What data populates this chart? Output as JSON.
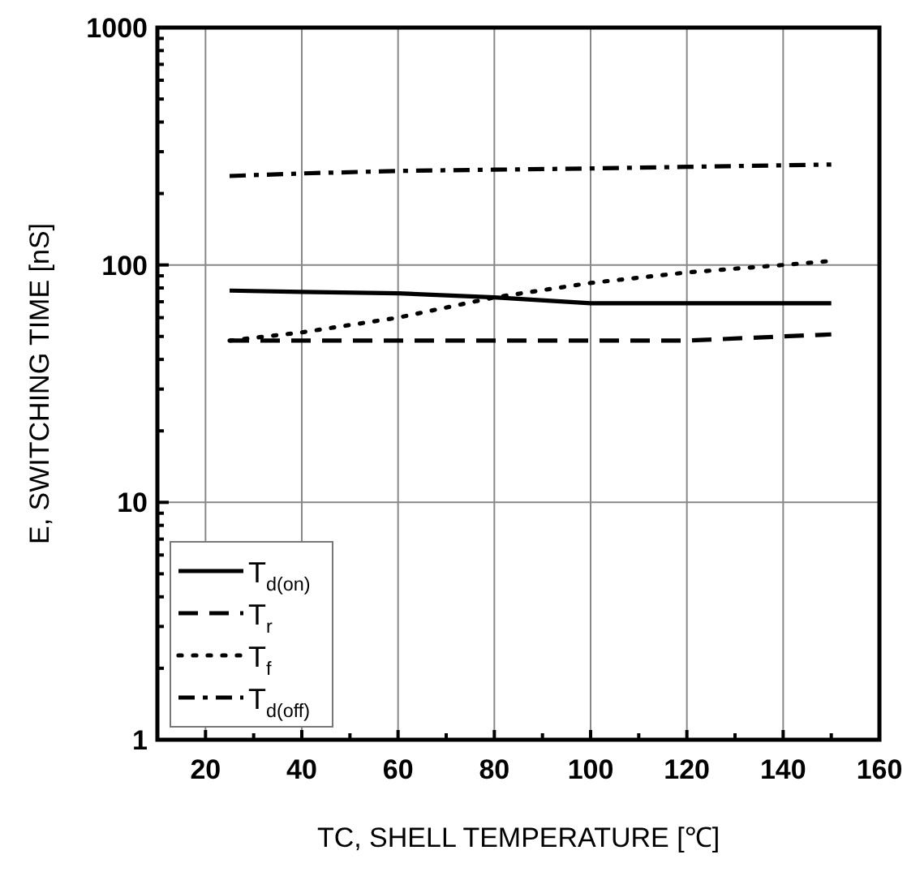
{
  "chart_data": {
    "type": "line",
    "xlabel": "TC, SHELL TEMPERATURE  [℃]",
    "ylabel": "E, SWITCHING TIME [nS]",
    "xlim": [
      10,
      160
    ],
    "xticks": [
      20,
      {
        "value": 30,
        "label": null
      },
      40,
      {
        "value": 50,
        "label": null
      },
      60,
      {
        "value": 70,
        "label": null
      },
      80,
      {
        "value": 90,
        "label": null
      },
      100,
      {
        "value": 110,
        "label": null
      },
      120,
      {
        "value": 130,
        "label": null
      },
      140,
      {
        "value": 150,
        "label": null
      },
      160
    ],
    "ylim": [
      1,
      1000
    ],
    "yticks": [
      1,
      {
        "value": 2,
        "label": null
      },
      {
        "value": 3,
        "label": null
      },
      {
        "value": 4,
        "label": null
      },
      {
        "value": 5,
        "label": null
      },
      {
        "value": 6,
        "label": null
      },
      {
        "value": 7,
        "label": null
      },
      {
        "value": 8,
        "label": null
      },
      {
        "value": 9,
        "label": null
      },
      10,
      {
        "value": 20,
        "label": null
      },
      {
        "value": 30,
        "label": null
      },
      {
        "value": 40,
        "label": null
      },
      {
        "value": 50,
        "label": null
      },
      {
        "value": 60,
        "label": null
      },
      {
        "value": 70,
        "label": null
      },
      {
        "value": 80,
        "label": null
      },
      {
        "value": 90,
        "label": null
      },
      100,
      {
        "value": 200,
        "label": null
      },
      {
        "value": 300,
        "label": null
      },
      {
        "value": 400,
        "label": null
      },
      {
        "value": 500,
        "label": null
      },
      {
        "value": 600,
        "label": null
      },
      {
        "value": 700,
        "label": null
      },
      {
        "value": 800,
        "label": null
      },
      {
        "value": 900,
        "label": null
      },
      1000
    ],
    "log": "y",
    "grid": true,
    "legend": "bottom left",
    "x": [
      25,
      40,
      60,
      80,
      100,
      120,
      140,
      150
    ],
    "series": [
      {
        "name": "T$_{d(on)}$",
        "color": "#000000",
        "line_style": "solid",
        "values": [
          78,
          77,
          76,
          73,
          69,
          69,
          69,
          69
        ]
      },
      {
        "name": "T$_{r}$",
        "color": "#000000",
        "line_style": "dashed",
        "values": [
          48,
          48,
          48,
          48,
          48,
          48,
          50,
          51
        ]
      },
      {
        "name": "T$_{f}$",
        "color": "#000000",
        "line_style": "dotted",
        "values": [
          48,
          52,
          60,
          73,
          84,
          93,
          100,
          104
        ]
      },
      {
        "name": "T$_{d(off)}$",
        "color": "#000000",
        "line_style": "dashdot",
        "values": [
          237,
          243,
          249,
          252,
          255,
          259,
          263,
          265
        ]
      }
    ]
  }
}
